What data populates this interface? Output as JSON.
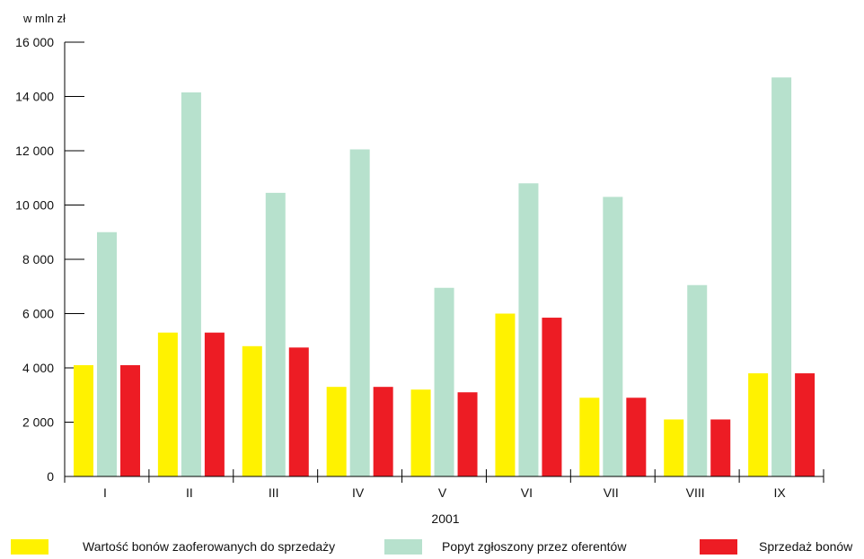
{
  "chart_data": {
    "type": "bar",
    "unit_label": "w mln zł",
    "xlabel": "2001",
    "categories": [
      "I",
      "II",
      "III",
      "IV",
      "V",
      "VI",
      "VII",
      "VIII",
      "IX"
    ],
    "ylim": [
      0,
      16000
    ],
    "yticks": [
      0,
      2000,
      4000,
      6000,
      8000,
      10000,
      12000,
      14000,
      16000
    ],
    "ytick_labels": [
      "0",
      "2 000",
      "4 000",
      "6 000",
      "8 000",
      "10 000",
      "12 000",
      "14 000",
      "16 000"
    ],
    "grid": false,
    "legend_position": "bottom",
    "series": [
      {
        "name": "Wartość bonów zaoferowanych do sprzedaży",
        "color": "#fff200",
        "values": [
          4100,
          5300,
          4800,
          3300,
          3200,
          6000,
          2900,
          2100,
          3800
        ]
      },
      {
        "name": "Popyt zgłoszony przez oferentów",
        "color": "#b7e1cd",
        "values": [
          9000,
          14150,
          10450,
          12050,
          6950,
          10800,
          10300,
          7050,
          14700
        ]
      },
      {
        "name": "Sprzedaż bonów",
        "color": "#ed1c24",
        "values": [
          4100,
          5300,
          4750,
          3300,
          3100,
          5850,
          2900,
          2100,
          3800
        ]
      }
    ]
  }
}
